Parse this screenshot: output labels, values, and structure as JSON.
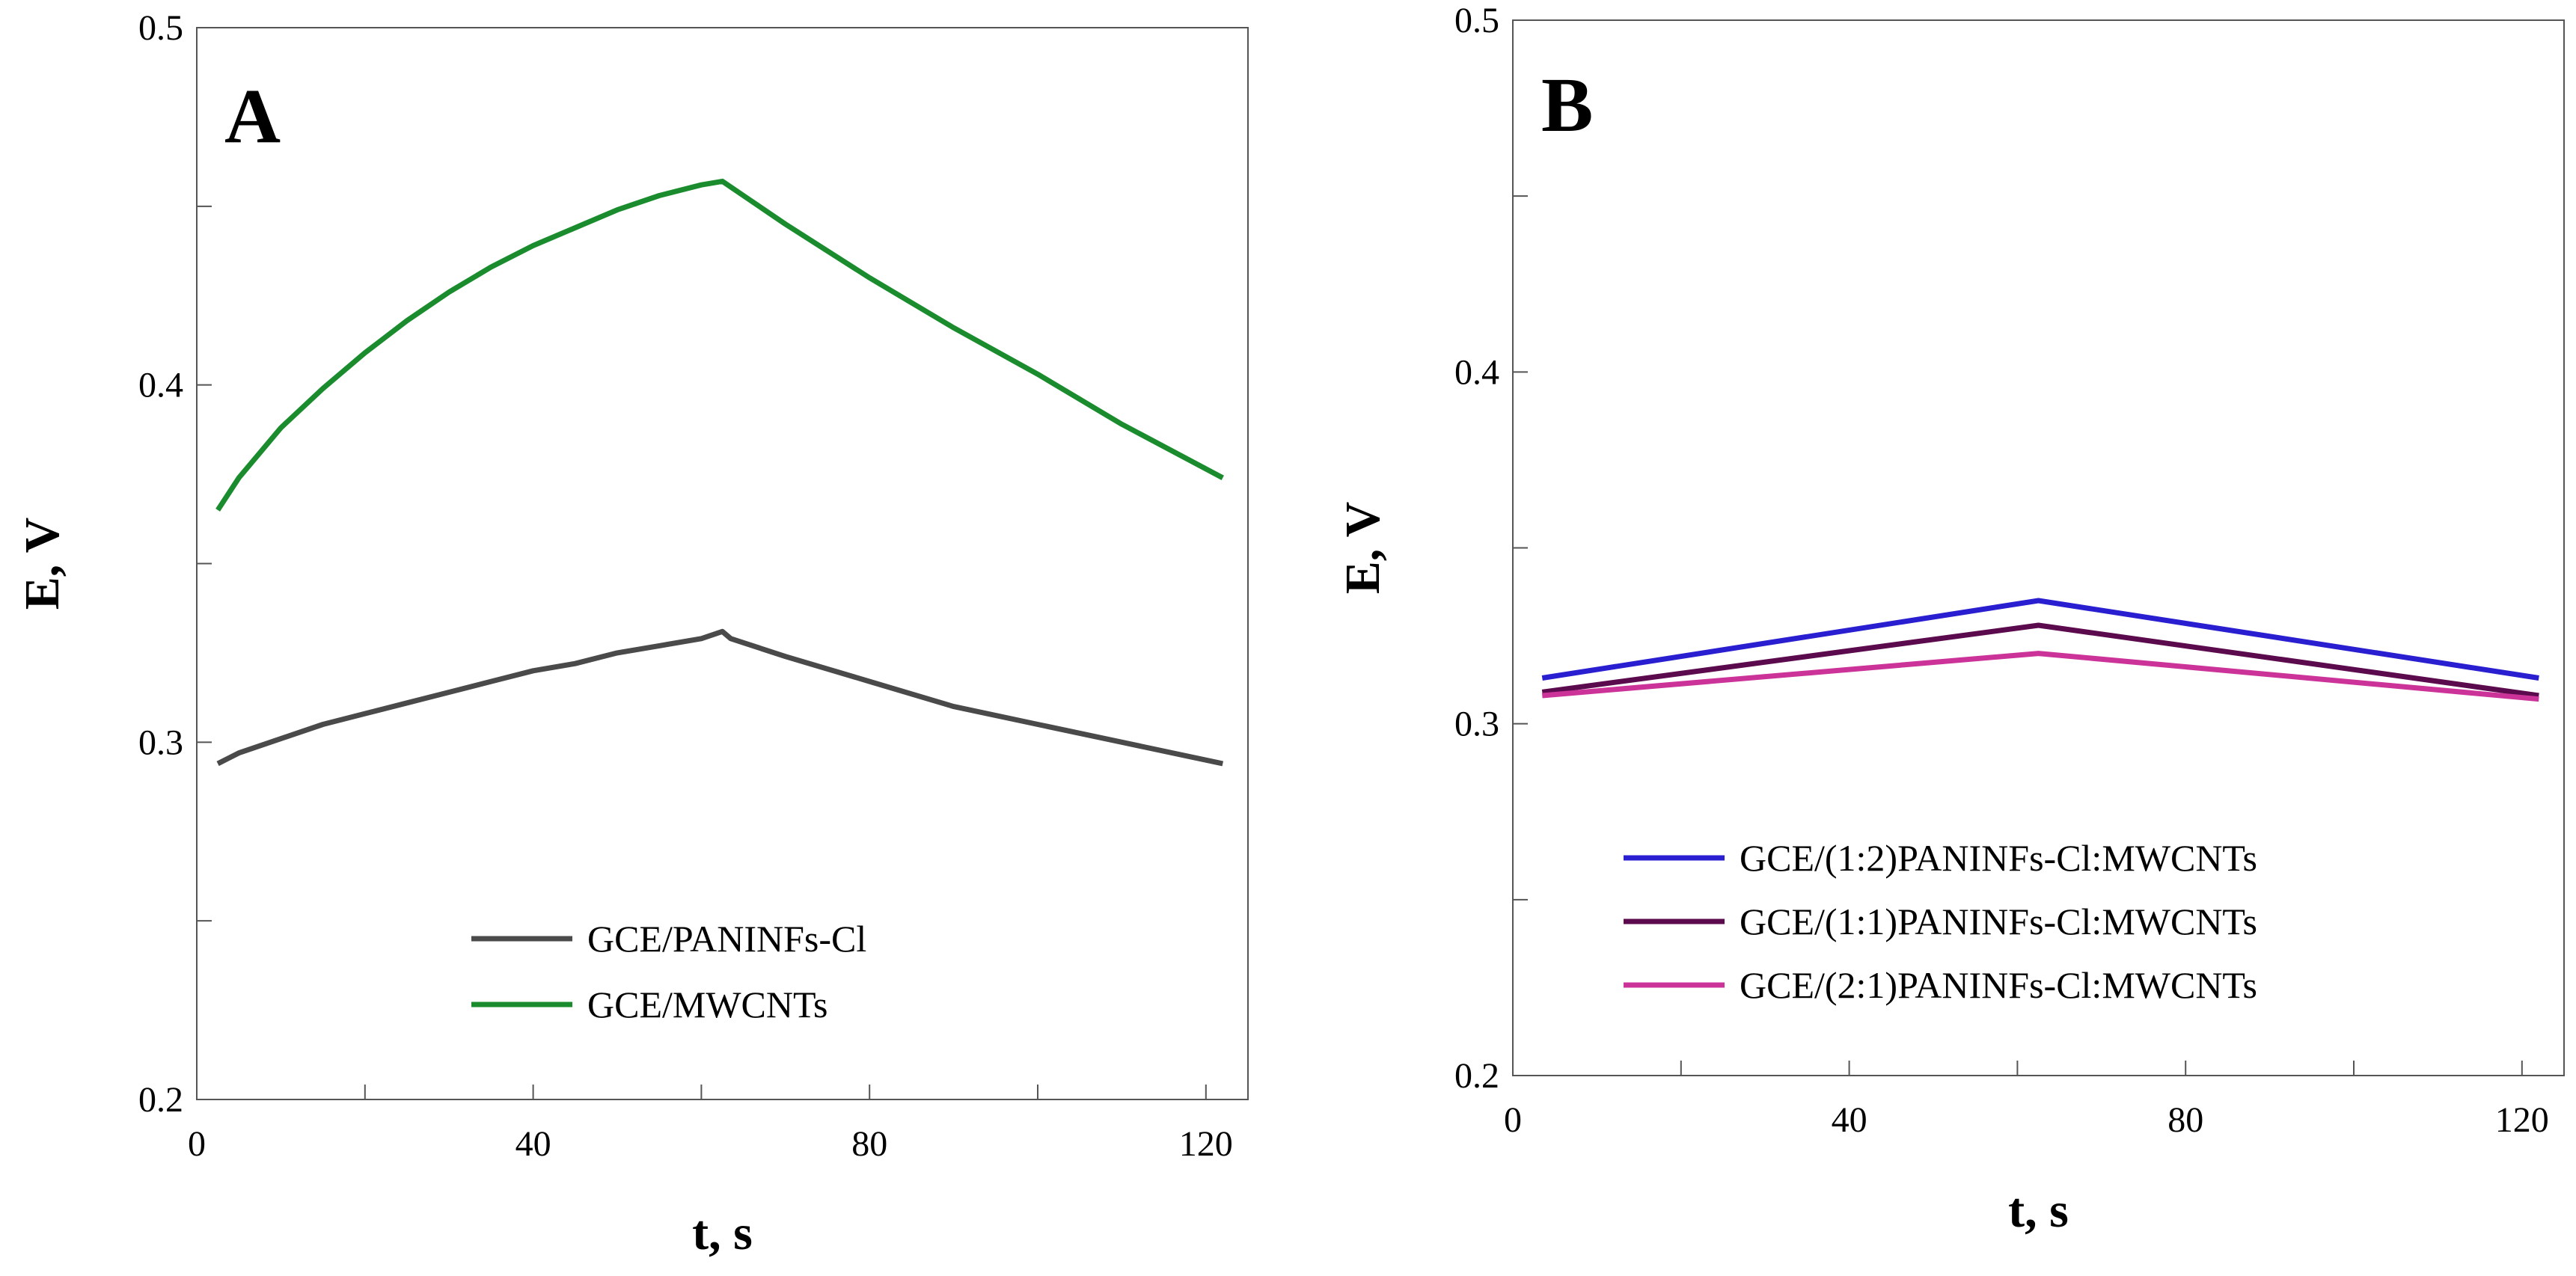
{
  "chart_data": [
    {
      "type": "line",
      "panel_label": "A",
      "xlabel": "t, s",
      "ylabel": "E, V",
      "xlim": [
        0,
        125
      ],
      "ylim": [
        0.2,
        0.5
      ],
      "xticks": [
        0,
        40,
        80,
        120
      ],
      "yticks": [
        0.2,
        0.3,
        0.4,
        0.5
      ],
      "x_minor_step": 20,
      "y_minor_step": 0.05,
      "legend_position": "lower-center",
      "series": [
        {
          "name": "GCE/PANINFs-Cl",
          "color": "#4a4a4a",
          "x": [
            2.5,
            5,
            10,
            15,
            20,
            25,
            30,
            35,
            40,
            45,
            50,
            55,
            60,
            62.5,
            63.5,
            70,
            80,
            90,
            100,
            110,
            122
          ],
          "y": [
            0.294,
            0.297,
            0.301,
            0.305,
            0.308,
            0.311,
            0.314,
            0.317,
            0.32,
            0.322,
            0.325,
            0.327,
            0.329,
            0.331,
            0.329,
            0.324,
            0.317,
            0.31,
            0.305,
            0.3,
            0.294
          ]
        },
        {
          "name": "GCE/MWCNTs",
          "color": "#1a8c2e",
          "x": [
            2.5,
            5,
            10,
            15,
            20,
            25,
            30,
            35,
            40,
            45,
            50,
            55,
            60,
            62.5,
            65,
            70,
            80,
            90,
            100,
            110,
            122
          ],
          "y": [
            0.365,
            0.374,
            0.388,
            0.399,
            0.409,
            0.418,
            0.426,
            0.433,
            0.439,
            0.444,
            0.449,
            0.453,
            0.456,
            0.457,
            0.453,
            0.445,
            0.43,
            0.416,
            0.403,
            0.389,
            0.374
          ]
        }
      ]
    },
    {
      "type": "line",
      "panel_label": "B",
      "xlabel": "t, s",
      "ylabel": "E, V",
      "xlim": [
        0,
        125
      ],
      "ylim": [
        0.2,
        0.5
      ],
      "xticks": [
        0,
        40,
        80,
        120
      ],
      "yticks": [
        0.2,
        0.3,
        0.4,
        0.5
      ],
      "x_minor_step": 20,
      "y_minor_step": 0.05,
      "legend_position": "lower-center",
      "series": [
        {
          "name": "GCE/(1:2)PANINFs-Cl:MWCNTs",
          "color": "#2a1fd0",
          "x": [
            3.5,
            62.5,
            122
          ],
          "y": [
            0.313,
            0.335,
            0.313
          ]
        },
        {
          "name": "GCE/(1:1)PANINFs-Cl:MWCNTs",
          "color": "#5c0a4e",
          "x": [
            3.5,
            62.5,
            122
          ],
          "y": [
            0.309,
            0.328,
            0.308
          ]
        },
        {
          "name": "GCE/(2:1)PANINFs-Cl:MWCNTs",
          "color": "#cc3399",
          "x": [
            3.5,
            62.5,
            122
          ],
          "y": [
            0.308,
            0.32,
            0.307
          ]
        }
      ]
    }
  ]
}
